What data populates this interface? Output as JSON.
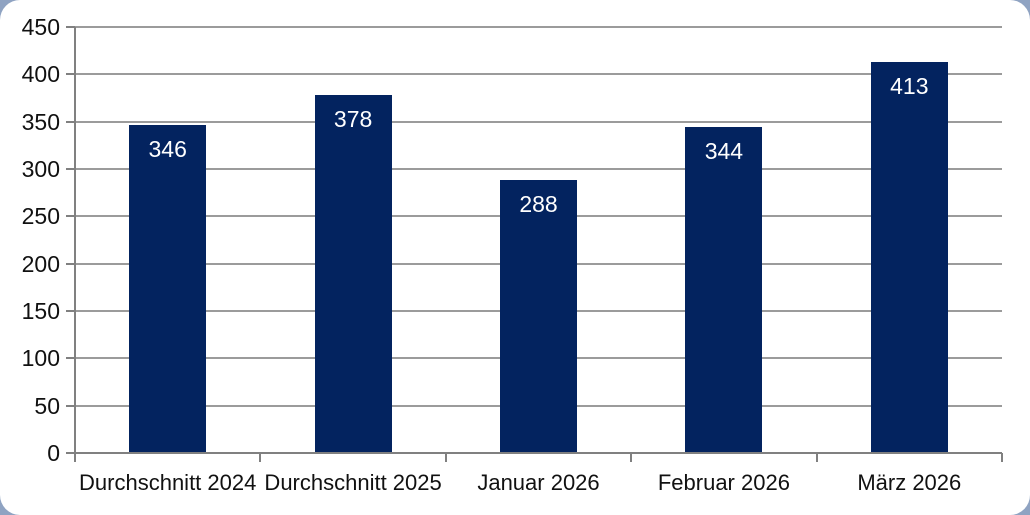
{
  "frame": {
    "outer_background": "#8FA3C2",
    "panel_background": "#FFFFFF"
  },
  "chart_data": {
    "type": "bar",
    "categories": [
      "Durchschnitt 2024",
      "Durchschnitt 2025",
      "Januar 2026",
      "Februar 2026",
      "März 2026"
    ],
    "values": [
      346,
      378,
      288,
      344,
      413
    ],
    "value_labels": [
      "346",
      "378",
      "288",
      "344",
      "413"
    ],
    "value_label_position": "inside-top",
    "ylim": [
      0,
      450
    ],
    "yticks": [
      0,
      50,
      100,
      150,
      200,
      250,
      300,
      350,
      400,
      450
    ],
    "grid": "horizontal",
    "legend_position": "none",
    "colors": {
      "bar": "#03235F",
      "value_label": "#FFFFFF",
      "grid": "#9B9B9B",
      "axis": "#808080",
      "tick_label": "#111111"
    }
  }
}
